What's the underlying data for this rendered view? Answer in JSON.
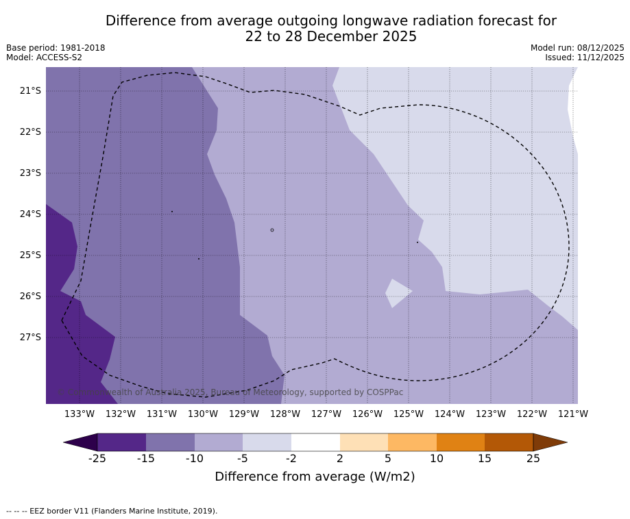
{
  "title": {
    "line1": "Difference from average outgoing longwave radiation forecast for",
    "line2": "22 to 28 December 2025"
  },
  "meta": {
    "base_period": "Base period: 1981-2018",
    "model": "Model: ACCESS-S2",
    "model_run": "Model run: 08/12/2025",
    "issued": "Issued: 11/12/2025"
  },
  "map": {
    "copyright": "© Commonwealth of Australia 2025, Bureau of Meteorology, supported by COSPPac",
    "lat_labels": [
      "21°S",
      "22°S",
      "23°S",
      "24°S",
      "25°S",
      "26°S",
      "27°S"
    ],
    "lon_labels": [
      "133°W",
      "132°W",
      "131°W",
      "130°W",
      "129°W",
      "128°W",
      "127°W",
      "126°W",
      "125°W",
      "124°W",
      "123°W",
      "122°W",
      "121°W"
    ],
    "lat_range": [
      -28.6,
      -20.4
    ],
    "lon_range": [
      -133.8,
      -120.8
    ],
    "colors": {
      "lt_neg25": "#2d004b",
      "neg25_neg15": "#542788",
      "neg15_neg10": "#8073ac",
      "neg10_neg5": "#b2abd2",
      "neg5_neg2": "#d8daeb",
      "neg2_2": "#ffffff",
      "2_5": "#fee0b6",
      "5_10": "#fdb863",
      "10_15": "#e08214",
      "15_25": "#b35806",
      "gt_25": "#7f3b08"
    }
  },
  "colorbar": {
    "ticks": [
      "-25",
      "-15",
      "-10",
      "-5",
      "-2",
      "2",
      "5",
      "10",
      "15",
      "25"
    ],
    "label": "Difference from average (W/m2)"
  },
  "footer": "--  --  -- EEZ border V11 (Flanders Marine Institute, 2019)."
}
